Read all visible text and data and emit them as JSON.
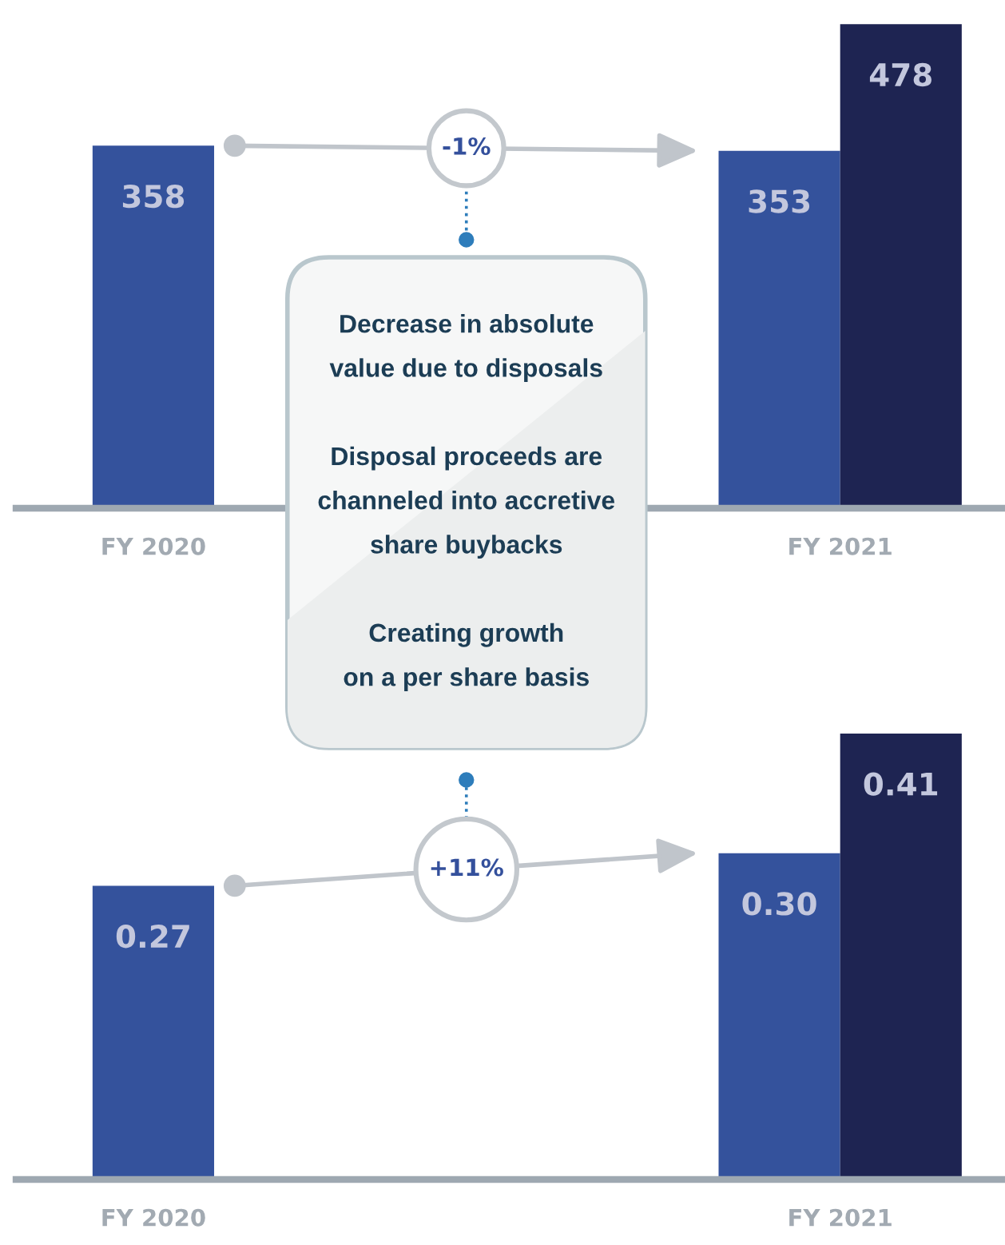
{
  "chart_data": [
    {
      "type": "bar",
      "categories": [
        "FY 2020",
        "FY 2021"
      ],
      "series": [
        {
          "color": "#34529c",
          "values": [
            358,
            353
          ],
          "value_labels": [
            "358",
            "353"
          ]
        },
        {
          "color": "#1e2452",
          "values": [
            null,
            478
          ],
          "value_labels": [
            null,
            "478"
          ]
        }
      ],
      "tick_labels": "x",
      "annotations": [
        "-1%",
        "Decrease in absolute\nvalue due to disposals",
        "Disposal proceeds are\nchanneled into accretive\nshare buybacks",
        "Creating growth\non a per share basis"
      ]
    },
    {
      "type": "bar",
      "categories": [
        "FY 2020",
        "FY 2021"
      ],
      "series": [
        {
          "color": "#34529c",
          "values": [
            0.27,
            0.3
          ],
          "value_labels": [
            "0.27",
            "0.30"
          ]
        },
        {
          "color": "#1e2452",
          "values": [
            null,
            0.41
          ],
          "value_labels": [
            null,
            "0.41"
          ]
        }
      ],
      "tick_labels": "x",
      "annotations": [
        "+11%"
      ]
    }
  ]
}
